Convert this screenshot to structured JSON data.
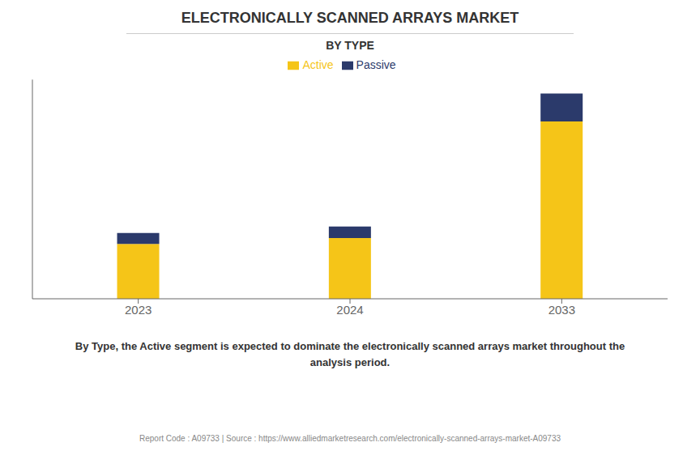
{
  "chart_data": {
    "type": "bar",
    "title": "ELECTRONICALLY SCANNED ARRAYS MARKET",
    "subtitle": "BY TYPE",
    "categories": [
      "2023",
      "2024",
      "2033"
    ],
    "series": [
      {
        "name": "Active",
        "color": "#F5C518",
        "values": [
          5.5,
          6.1,
          17.8
        ]
      },
      {
        "name": "Passive",
        "color": "#2B3A6B",
        "values": [
          1.1,
          1.15,
          2.8
        ]
      }
    ],
    "stacked": true,
    "ylim": [
      0,
      22
    ],
    "grid": false,
    "legend": "top",
    "tick_labels": "x",
    "annotations": [
      "By Type, the Active segment is expected to dominate the electronically scanned arrays market throughout the",
      "analysis period."
    ],
    "footer": "Report Code : A09733  |  Source : https://www.alliedmarketresearch.com/electronically-scanned-arrays-market-A09733"
  }
}
